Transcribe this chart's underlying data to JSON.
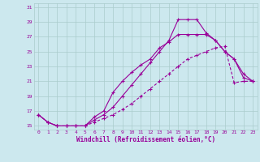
{
  "xlabel": "Windchill (Refroidissement éolien,°C)",
  "bg_color": "#cce8ee",
  "grid_color": "#aacccc",
  "line_color": "#990099",
  "xlim": [
    -0.5,
    23.5
  ],
  "ylim": [
    14.5,
    31.5
  ],
  "yticks": [
    15,
    17,
    19,
    21,
    23,
    25,
    27,
    29,
    31
  ],
  "xticks": [
    0,
    1,
    2,
    3,
    4,
    5,
    6,
    7,
    8,
    9,
    10,
    11,
    12,
    13,
    14,
    15,
    16,
    17,
    18,
    19,
    20,
    21,
    22,
    23
  ],
  "curve1_x": [
    0,
    1,
    2,
    3,
    4,
    5,
    6,
    7,
    8,
    9,
    10,
    11,
    12,
    13,
    14,
    15,
    16,
    17,
    18,
    19,
    20,
    21,
    22,
    23
  ],
  "curve1_y": [
    16.5,
    15.5,
    15,
    15,
    15,
    15,
    16.2,
    17,
    19.5,
    21,
    22.2,
    23.2,
    24,
    25.5,
    26.3,
    27.3,
    27.3,
    27.3,
    27.3,
    26.5,
    25,
    24,
    21.5,
    21
  ],
  "curve2_x": [
    0,
    1,
    2,
    3,
    4,
    5,
    6,
    7,
    8,
    9,
    10,
    11,
    12,
    13,
    14,
    15,
    16,
    17,
    18,
    19,
    20,
    21,
    22,
    23
  ],
  "curve2_y": [
    16.5,
    15.5,
    15,
    15,
    15,
    15,
    15.8,
    16.5,
    17.5,
    19,
    20.5,
    22,
    23.5,
    25,
    26.5,
    29.3,
    29.3,
    29.3,
    27.5,
    26.5,
    25,
    24,
    22,
    21
  ],
  "curve3_x": [
    0,
    1,
    2,
    3,
    4,
    5,
    6,
    7,
    8,
    9,
    10,
    11,
    12,
    13,
    14,
    15,
    16,
    17,
    18,
    19,
    20,
    21,
    22,
    23
  ],
  "curve3_y": [
    16.5,
    15.5,
    15,
    15,
    15,
    15,
    15.5,
    16,
    16.5,
    17.2,
    18,
    19,
    20,
    21,
    22,
    23,
    24,
    24.5,
    25,
    25.5,
    25.7,
    20.8,
    21,
    21
  ]
}
